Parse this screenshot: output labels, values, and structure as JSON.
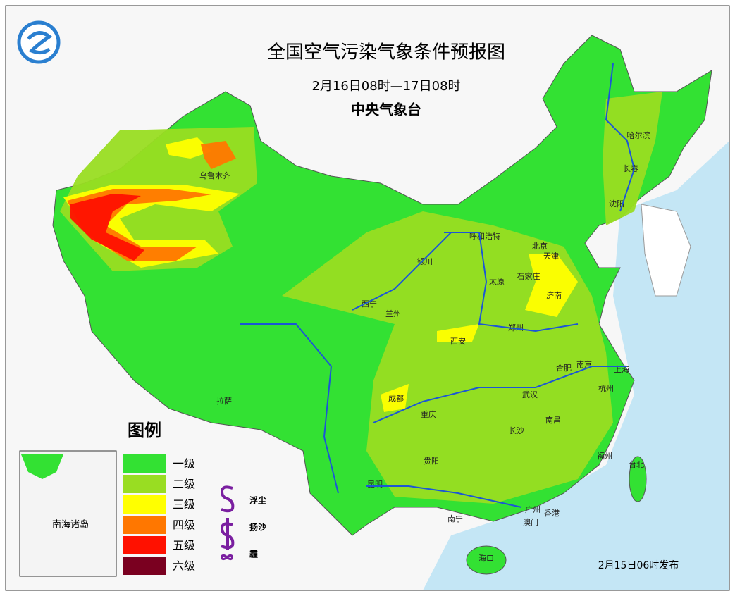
{
  "header": {
    "title": "全国空气污染气象条件预报图",
    "period": "2月16日08时—17日08时",
    "agency": "中央气象台"
  },
  "cities": [
    "乌鲁木齐",
    "哈尔滨",
    "长春",
    "沈阳",
    "呼和浩特",
    "北京",
    "天津",
    "银川",
    "太原",
    "石家庄",
    "济南",
    "西宁",
    "兰州",
    "郑州",
    "西安",
    "合肥",
    "南京",
    "上海",
    "成都",
    "武汉",
    "杭州",
    "拉萨",
    "重庆",
    "南昌",
    "长沙",
    "贵阳",
    "福州",
    "台北",
    "昆明",
    "南宁",
    "广州",
    "香港",
    "澳门",
    "海口"
  ],
  "inset": {
    "label": "南海诸岛"
  },
  "legend": {
    "title": "图例",
    "levels": [
      {
        "label": "一级",
        "color": "#33e133"
      },
      {
        "label": "二级",
        "color": "#99dd22"
      },
      {
        "label": "三级",
        "color": "#ffff00"
      },
      {
        "label": "四级",
        "color": "#ff7700"
      },
      {
        "label": "五级",
        "color": "#ff1100"
      },
      {
        "label": "六级",
        "color": "#7a0020"
      }
    ],
    "symbols": [
      "浮尘",
      "扬沙",
      "霾"
    ]
  },
  "issued": "2月15日06时发布"
}
